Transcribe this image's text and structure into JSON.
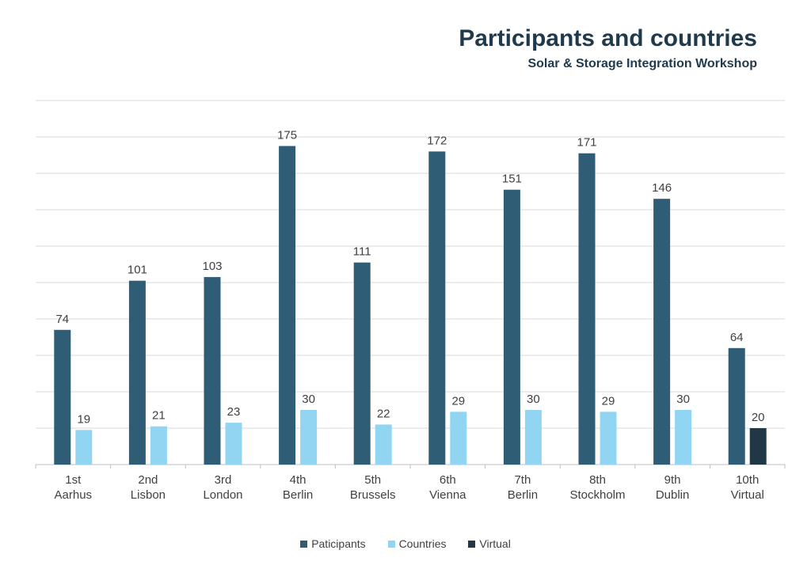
{
  "chart_data": {
    "type": "bar",
    "title": "Participants and countries",
    "subtitle": "Solar & Storage Integration Workshop",
    "categories": [
      [
        "1st",
        "Aarhus"
      ],
      [
        "2nd",
        "Lisbon"
      ],
      [
        "3rd",
        "London"
      ],
      [
        "4th",
        "Berlin"
      ],
      [
        "5th",
        "Brussels"
      ],
      [
        "6th",
        "Vienna"
      ],
      [
        "7th",
        "Berlin"
      ],
      [
        "8th",
        "Stockholm"
      ],
      [
        "9th",
        "Dublin"
      ],
      [
        "10th",
        "Virtual"
      ]
    ],
    "series": [
      {
        "name": "Paticipants",
        "color": "#2e5d75",
        "values": [
          74,
          101,
          103,
          175,
          111,
          172,
          151,
          171,
          146,
          64
        ]
      },
      {
        "name": "Countries",
        "color": "#92d5f3",
        "values": [
          19,
          21,
          23,
          30,
          22,
          29,
          30,
          29,
          30,
          null
        ]
      },
      {
        "name": "Virtual",
        "color": "#203845",
        "values": [
          null,
          null,
          null,
          null,
          null,
          null,
          null,
          null,
          null,
          20
        ]
      }
    ],
    "ylim": [
      0,
      200
    ],
    "grid": true,
    "legend": "bottom"
  }
}
